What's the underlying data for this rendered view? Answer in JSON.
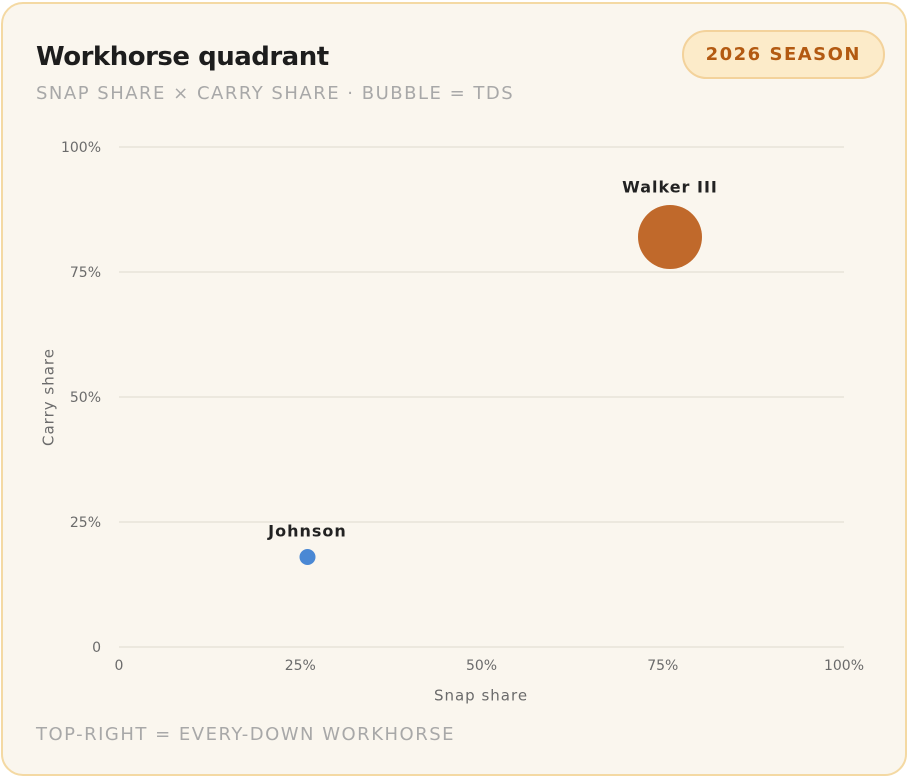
{
  "badge": "2026 SEASON",
  "footnote": "TOP-RIGHT = EVERY-DOWN WORKHORSE",
  "chart_data": {
    "type": "bubble",
    "title": "Workhorse quadrant",
    "subtitle": "SNAP SHARE × CARRY SHARE · BUBBLE = TDS",
    "x_label": "Snap share",
    "y_label": "Carry share",
    "xlim": [
      0,
      100
    ],
    "ylim": [
      0,
      100
    ],
    "xticks": [
      0,
      {
        "value": 25,
        "label": "25%"
      },
      {
        "value": 50,
        "label": "50%"
      },
      {
        "value": 75,
        "label": "75%"
      },
      {
        "value": 100,
        "label": "100%"
      }
    ],
    "yticks": [
      0,
      {
        "value": 25,
        "label": "25%"
      },
      {
        "value": 50,
        "label": "50%"
      },
      {
        "value": 75,
        "label": "75%"
      },
      {
        "value": 100,
        "label": "100%"
      }
    ],
    "grid": true,
    "series": [
      {
        "name": "Walker III",
        "color": "#c0692b",
        "x": 76,
        "y": 82,
        "size": 16
      },
      {
        "name": "Johnson",
        "color": "#4a88d4",
        "x": 26,
        "y": 18,
        "size": 1
      }
    ]
  }
}
